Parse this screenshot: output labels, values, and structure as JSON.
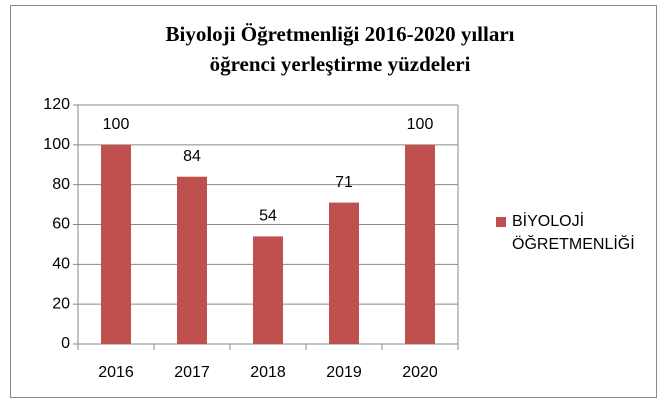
{
  "chart_data": {
    "type": "bar",
    "title": [
      "Biyoloji Öğretmenliği 2016-2020 yılları",
      "öğrenci yerleştirme yüzdeleri"
    ],
    "categories": [
      "2016",
      "2017",
      "2018",
      "2019",
      "2020"
    ],
    "series": [
      {
        "name": "BİYOLOJİ ÖĞRETMENLİĞİ",
        "color": "#c0504d",
        "values": [
          100,
          84,
          54,
          71,
          100
        ]
      }
    ],
    "ylim": [
      0,
      120
    ],
    "yticks": [
      0,
      20,
      40,
      60,
      80,
      100,
      120
    ],
    "grid": true,
    "legend": "right"
  }
}
